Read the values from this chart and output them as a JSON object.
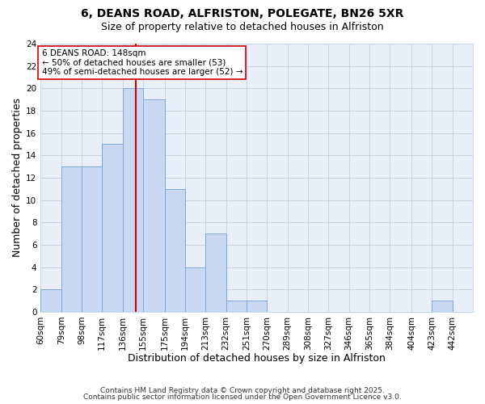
{
  "title": "6, DEANS ROAD, ALFRISTON, POLEGATE, BN26 5XR",
  "subtitle": "Size of property relative to detached houses in Alfriston",
  "xlabel": "Distribution of detached houses by size in Alfriston",
  "ylabel": "Number of detached properties",
  "bar_values": [
    2,
    13,
    13,
    15,
    20,
    19,
    11,
    4,
    7,
    1,
    1,
    0,
    0,
    0,
    0,
    0,
    0,
    0,
    0,
    1,
    0
  ],
  "bin_labels": [
    "60sqm",
    "79sqm",
    "98sqm",
    "117sqm",
    "136sqm",
    "155sqm",
    "175sqm",
    "194sqm",
    "213sqm",
    "232sqm",
    "251sqm",
    "270sqm",
    "289sqm",
    "308sqm",
    "327sqm",
    "346sqm",
    "365sqm",
    "384sqm",
    "404sqm",
    "423sqm",
    "442sqm"
  ],
  "bin_edges": [
    60,
    79,
    98,
    117,
    136,
    155,
    175,
    194,
    213,
    232,
    251,
    270,
    289,
    308,
    327,
    346,
    365,
    384,
    404,
    423,
    442
  ],
  "bar_color": "#c8d8f0",
  "bar_edgecolor": "#7aa8d8",
  "plot_bg_color": "#e8eff8",
  "vline_x": 148,
  "vline_color": "#cc0000",
  "ylim": [
    0,
    24
  ],
  "yticks": [
    0,
    2,
    4,
    6,
    8,
    10,
    12,
    14,
    16,
    18,
    20,
    22,
    24
  ],
  "annotation_title": "6 DEANS ROAD: 148sqm",
  "annotation_line1": "← 50% of detached houses are smaller (53)",
  "annotation_line2": "49% of semi-detached houses are larger (52) →",
  "footnote1": "Contains HM Land Registry data © Crown copyright and database right 2025.",
  "footnote2": "Contains public sector information licensed under the Open Government Licence v3.0.",
  "background_color": "#ffffff",
  "grid_color": "#c8d4e8",
  "title_fontsize": 10,
  "subtitle_fontsize": 9,
  "axis_label_fontsize": 9,
  "tick_fontsize": 7.5,
  "annotation_fontsize": 7.5,
  "footnote_fontsize": 6.5
}
